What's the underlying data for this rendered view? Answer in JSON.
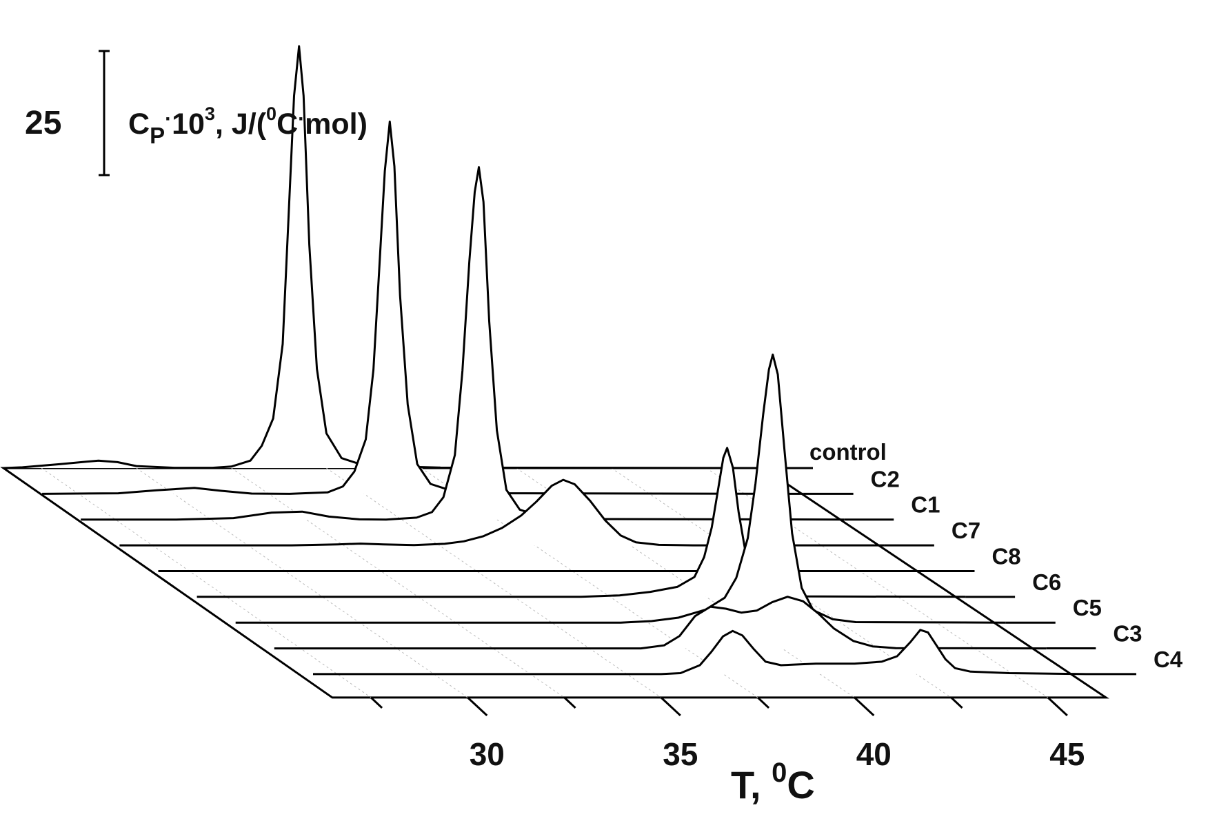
{
  "chart_data": {
    "type": "line",
    "style": "3d-waterfall",
    "xlabel": {
      "main": "T, ",
      "sup": "0",
      "unit": "C"
    },
    "ylabel_scale": {
      "value": "25",
      "prefix": "C",
      "sub": "P",
      "dot": "·",
      "mult": "10",
      "exp": "3",
      "rest1": ", J/(",
      "deg": "0",
      "rest2": "C",
      "dot2": "·",
      "rest3": "mol)"
    },
    "scale_bar_value": 25,
    "x_ticks": [
      "30",
      "35",
      "40",
      "45"
    ],
    "x_tick_values": [
      30,
      35,
      40,
      45
    ],
    "xlim": [
      26.5,
      46.5
    ],
    "series": [
      {
        "name": "control",
        "points": [
          [
            26.5,
            0
          ],
          [
            27,
            0.15
          ],
          [
            28,
            0.8
          ],
          [
            29,
            1.5
          ],
          [
            29.5,
            1.2
          ],
          [
            30,
            0.4
          ],
          [
            31,
            0.05
          ],
          [
            32,
            0.05
          ],
          [
            32.5,
            0.3
          ],
          [
            33,
            1.5
          ],
          [
            33.3,
            4.5
          ],
          [
            33.6,
            10
          ],
          [
            33.85,
            25
          ],
          [
            34,
            50
          ],
          [
            34.15,
            75
          ],
          [
            34.28,
            85
          ],
          [
            34.4,
            75
          ],
          [
            34.55,
            45
          ],
          [
            34.75,
            20
          ],
          [
            35,
            7
          ],
          [
            35.4,
            2
          ],
          [
            36,
            0.5
          ],
          [
            38,
            0.1
          ],
          [
            46.5,
            0
          ]
        ]
      },
      {
        "name": "C2",
        "points": [
          [
            26.5,
            0
          ],
          [
            28.5,
            0.1
          ],
          [
            29.5,
            0.7
          ],
          [
            30.5,
            1.2
          ],
          [
            31.2,
            0.6
          ],
          [
            32,
            0.05
          ],
          [
            33,
            0
          ],
          [
            34,
            0.3
          ],
          [
            34.4,
            1.5
          ],
          [
            34.7,
            4.5
          ],
          [
            35,
            11
          ],
          [
            35.2,
            25
          ],
          [
            35.35,
            45
          ],
          [
            35.5,
            65
          ],
          [
            35.63,
            75
          ],
          [
            35.75,
            66
          ],
          [
            35.9,
            40
          ],
          [
            36.1,
            18
          ],
          [
            36.35,
            6
          ],
          [
            36.7,
            2
          ],
          [
            37.3,
            0.5
          ],
          [
            38.5,
            0.1
          ],
          [
            46.5,
            0
          ]
        ]
      },
      {
        "name": "C1",
        "points": [
          [
            26.5,
            0
          ],
          [
            29,
            0
          ],
          [
            30.5,
            0.3
          ],
          [
            31.5,
            1.4
          ],
          [
            32.3,
            1.6
          ],
          [
            33,
            0.6
          ],
          [
            33.8,
            0.05
          ],
          [
            34.5,
            0
          ],
          [
            35.3,
            0.4
          ],
          [
            35.7,
            1.5
          ],
          [
            36,
            4.5
          ],
          [
            36.3,
            13
          ],
          [
            36.5,
            30
          ],
          [
            36.68,
            52
          ],
          [
            36.82,
            66
          ],
          [
            36.93,
            71
          ],
          [
            37.05,
            64
          ],
          [
            37.2,
            40
          ],
          [
            37.4,
            18
          ],
          [
            37.65,
            6
          ],
          [
            38,
            2
          ],
          [
            38.6,
            0.5
          ],
          [
            40,
            0.1
          ],
          [
            46.5,
            0
          ]
        ]
      },
      {
        "name": "C7",
        "points": [
          [
            26.5,
            0
          ],
          [
            31,
            0
          ],
          [
            32.2,
            0.2
          ],
          [
            32.8,
            0.35
          ],
          [
            33.4,
            0.2
          ],
          [
            34.2,
            0.05
          ],
          [
            35,
            0.3
          ],
          [
            35.5,
            0.8
          ],
          [
            36,
            1.8
          ],
          [
            36.5,
            3.5
          ],
          [
            37,
            6
          ],
          [
            37.4,
            8.8
          ],
          [
            37.8,
            12
          ],
          [
            38.1,
            13.2
          ],
          [
            38.4,
            12.3
          ],
          [
            38.8,
            9
          ],
          [
            39.2,
            5
          ],
          [
            39.6,
            2
          ],
          [
            40,
            0.6
          ],
          [
            40.6,
            0.1
          ],
          [
            41.5,
            0
          ],
          [
            46.5,
            0
          ]
        ]
      },
      {
        "name": "C8",
        "points": [
          [
            26.5,
            0
          ],
          [
            44,
            0
          ],
          [
            46.5,
            0
          ]
        ]
      },
      {
        "name": "C6",
        "points": [
          [
            26.5,
            0
          ],
          [
            35,
            0
          ],
          [
            36.5,
            0
          ],
          [
            37.5,
            0.3
          ],
          [
            38.3,
            1
          ],
          [
            39,
            2
          ],
          [
            39.45,
            4
          ],
          [
            39.7,
            8
          ],
          [
            39.9,
            14
          ],
          [
            40.05,
            21
          ],
          [
            40.2,
            28
          ],
          [
            40.3,
            30
          ],
          [
            40.45,
            26
          ],
          [
            40.6,
            17
          ],
          [
            40.8,
            8
          ],
          [
            41.1,
            2.5
          ],
          [
            41.5,
            0.6
          ],
          [
            42,
            0.1
          ],
          [
            46.5,
            0
          ]
        ]
      },
      {
        "name": "C5",
        "points": [
          [
            26.5,
            0
          ],
          [
            36.5,
            0
          ],
          [
            37.3,
            0.3
          ],
          [
            38,
            1
          ],
          [
            38.7,
            2.6
          ],
          [
            39.2,
            5
          ],
          [
            39.5,
            9
          ],
          [
            39.8,
            17
          ],
          [
            40,
            28
          ],
          [
            40.2,
            42
          ],
          [
            40.35,
            51
          ],
          [
            40.45,
            54
          ],
          [
            40.58,
            50
          ],
          [
            40.75,
            35
          ],
          [
            40.95,
            18
          ],
          [
            41.2,
            7
          ],
          [
            41.5,
            2.5
          ],
          [
            42,
            0.7
          ],
          [
            42.6,
            0.1
          ],
          [
            46.5,
            0
          ]
        ]
      },
      {
        "name": "C3",
        "points": [
          [
            26.5,
            0
          ],
          [
            36,
            0
          ],
          [
            36.6,
            0.6
          ],
          [
            37,
            2.5
          ],
          [
            37.4,
            6.5
          ],
          [
            37.8,
            8.4
          ],
          [
            38.2,
            8
          ],
          [
            38.6,
            7.2
          ],
          [
            39,
            7.6
          ],
          [
            39.4,
            9.3
          ],
          [
            39.8,
            10.4
          ],
          [
            40.2,
            9.5
          ],
          [
            40.6,
            7
          ],
          [
            41,
            4
          ],
          [
            41.5,
            1.5
          ],
          [
            42,
            0.4
          ],
          [
            42.6,
            0.05
          ],
          [
            46.5,
            0
          ]
        ]
      },
      {
        "name": "C4",
        "points": [
          [
            26.5,
            0
          ],
          [
            35.5,
            0
          ],
          [
            36,
            0.2
          ],
          [
            36.5,
            1.8
          ],
          [
            36.8,
            4.5
          ],
          [
            37.1,
            7.6
          ],
          [
            37.35,
            8.7
          ],
          [
            37.6,
            7.8
          ],
          [
            37.9,
            5
          ],
          [
            38.2,
            2.5
          ],
          [
            38.6,
            1.8
          ],
          [
            39.5,
            2.1
          ],
          [
            40.5,
            2.1
          ],
          [
            41.2,
            2.5
          ],
          [
            41.6,
            3.6
          ],
          [
            41.95,
            6.5
          ],
          [
            42.2,
            8.9
          ],
          [
            42.4,
            8.4
          ],
          [
            42.6,
            6
          ],
          [
            42.85,
            3
          ],
          [
            43.1,
            1.2
          ],
          [
            43.5,
            0.5
          ],
          [
            44.5,
            0.2
          ],
          [
            46.5,
            0
          ]
        ]
      }
    ],
    "grid": true,
    "legend": "labels-along-right-depth-axis"
  }
}
